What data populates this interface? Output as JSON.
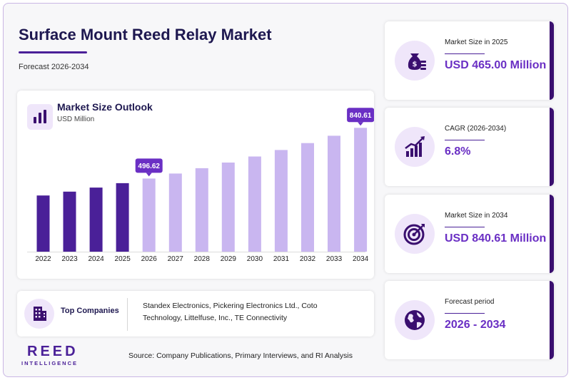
{
  "header": {
    "title": "Surface Mount Reed Relay Market",
    "subtitle": "Forecast 2026-2034"
  },
  "chart": {
    "title": "Market Size Outlook",
    "unit": "USD Million"
  },
  "chart_data": {
    "type": "bar",
    "categories": [
      "2022",
      "2023",
      "2024",
      "2025",
      "2026",
      "2027",
      "2028",
      "2029",
      "2030",
      "2031",
      "2032",
      "2033",
      "2034"
    ],
    "values": [
      381.5,
      407.4,
      435.1,
      465.0,
      496.62,
      530.4,
      566.4,
      604.9,
      646.1,
      690.0,
      736.9,
      787.0,
      840.61
    ],
    "historical_until": "2025",
    "colors": {
      "historical": "#4a2098",
      "forecast": "#c9b6f0",
      "label_bg": "#6a2fc4"
    },
    "data_labels": [
      {
        "category": "2026",
        "text": "496.62"
      },
      {
        "category": "2034",
        "text": "840.61"
      }
    ],
    "ylim": [
      0,
      900
    ],
    "grid": false,
    "legend": "none"
  },
  "companies": {
    "label": "Top Companies",
    "text": "Standex Electronics, Pickering Electronics Ltd., Coto Technology, Littelfuse, Inc., TE Connectivity"
  },
  "kpis": [
    {
      "label": "Market Size in 2025",
      "value": "USD 465.00 Million",
      "icon": "money-bag-icon"
    },
    {
      "label": "CAGR (2026-2034)",
      "value": "6.8%",
      "icon": "growth-chart-icon"
    },
    {
      "label": "Market Size in 2034",
      "value": "USD 840.61 Million",
      "icon": "target-icon"
    },
    {
      "label": "Forecast period",
      "value": "2026 - 2034",
      "icon": "globe-icon"
    }
  ],
  "footer": {
    "logo_main": "REED",
    "logo_sub": "INTELLIGENCE",
    "source": "Source: Company Publications, Primary Interviews, and RI Analysis"
  }
}
